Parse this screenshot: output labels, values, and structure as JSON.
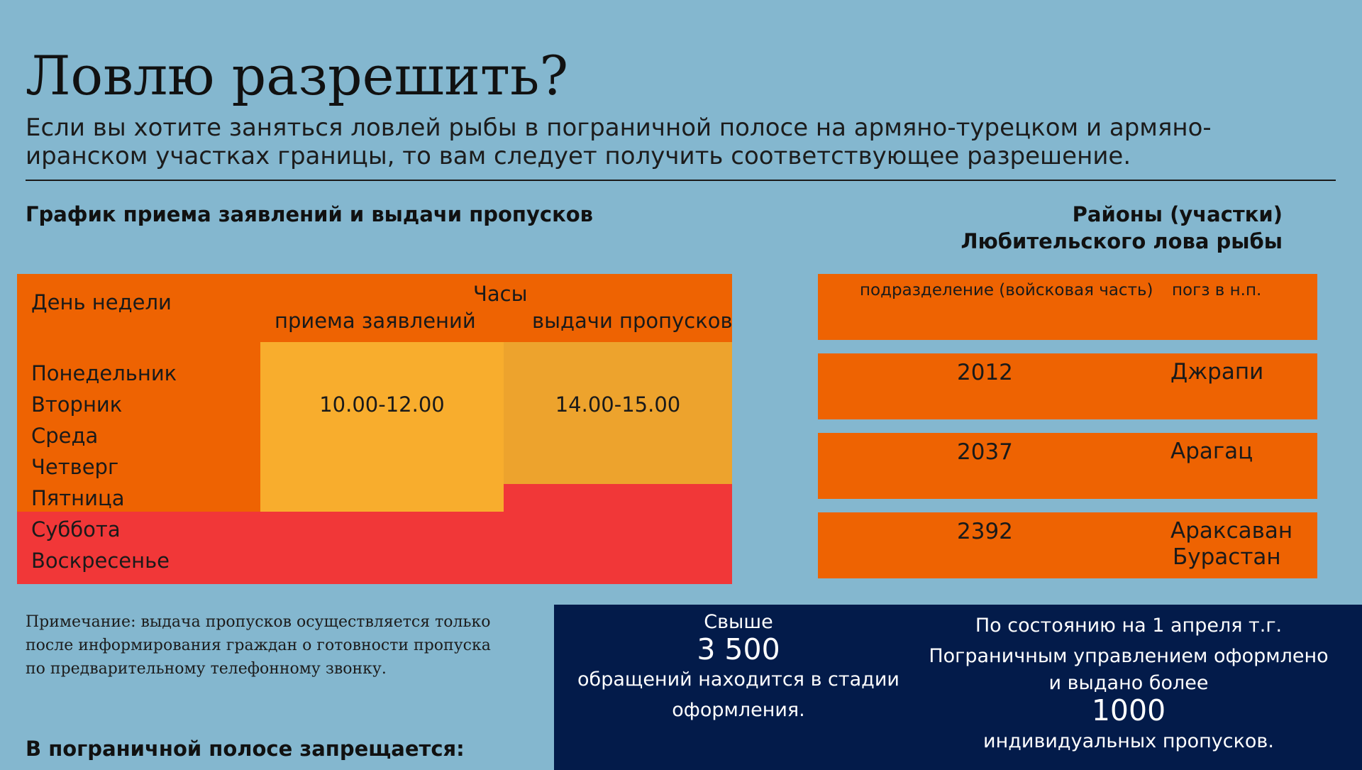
{
  "header": {
    "title": "Ловлю разрешить?",
    "subtitle": "Если вы хотите заняться ловлей рыбы в пограничной полосе на армяно-турецком и армяно-иранском участках границы, то вам следует получить соответствующее разрешение."
  },
  "schedule": {
    "heading": "График приема заявлений и выдачи пропусков",
    "col_day": "День недели",
    "col_hours": "Часы",
    "col_apply": "приема заявлений",
    "col_issue": "выдачи пропусков",
    "weekdays": [
      "Понедельник",
      "Вторник",
      "Среда",
      "Четверг",
      "Пятница"
    ],
    "weekend": [
      "Суббота",
      "Воскресенье"
    ],
    "apply_time": "10.00-12.00",
    "issue_time": "14.00-15.00"
  },
  "districts": {
    "heading_line1": "Районы (участки)",
    "heading_line2": "Любительского лова рыбы",
    "col_unit": "подразделение (войсковая часть)",
    "col_place": "погз в н.п.",
    "rows": [
      {
        "code": "2012",
        "place": "Джрапи"
      },
      {
        "code": "2037",
        "place": "Арагац"
      },
      {
        "code": "2392",
        "place": "Араксаван",
        "place2": "Бурастан"
      }
    ]
  },
  "note": "Примечание: выдача пропусков осуществляется только после информирования граждан о готовности пропуска по предварительному телефонному звонку.",
  "ban_heading": "В пограничной полосе запрещается:",
  "stats": {
    "left": {
      "pre": "Свыше",
      "number": "3 500",
      "line1": "обращений находится в стадии",
      "line2": "оформления."
    },
    "right": {
      "line1": "По состоянию на 1 апреля т.г.",
      "line2": "Пограничным управлением оформлено",
      "line3": "и выдано более",
      "number": "1000",
      "line4": "индивидуальных пропусков."
    }
  },
  "colors": {
    "background": "#84b7cf",
    "orange": "#ee6302",
    "yellow": "#f8ad2d",
    "amber": "#eda32d",
    "red": "#f13738",
    "navy": "#031b4a"
  }
}
